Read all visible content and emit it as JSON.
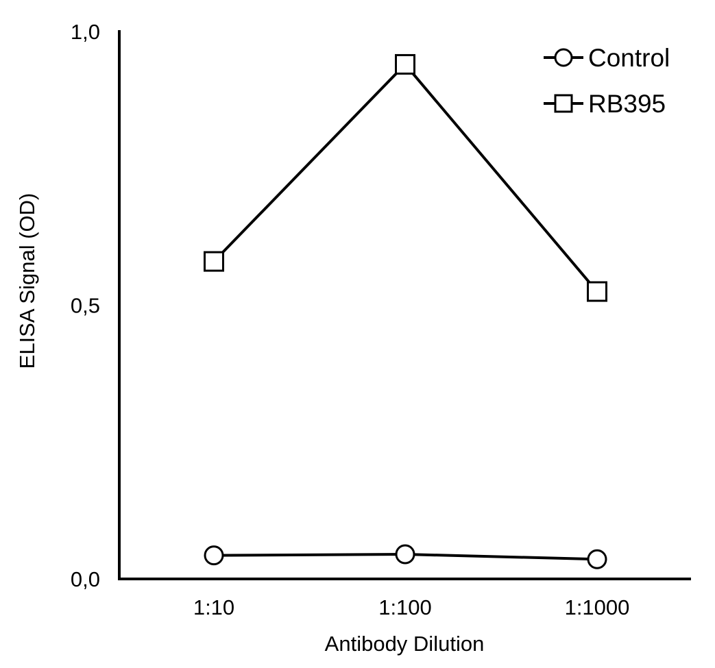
{
  "chart_data": {
    "type": "line",
    "title": "",
    "xlabel": "Antibody Dilution",
    "ylabel": "ELISA Signal (OD)",
    "categories": [
      "1:10",
      "1:100",
      "1:1000"
    ],
    "ylim": [
      0,
      1
    ],
    "yticks": [
      0,
      0.5,
      1
    ],
    "ytick_labels": [
      "0,0",
      "0,5",
      "1,0"
    ],
    "grid": false,
    "legend_position": "top-right",
    "series": [
      {
        "name": "Control",
        "marker": "circle",
        "color": "#000000",
        "values": [
          0.043,
          0.045,
          0.036
        ]
      },
      {
        "name": "RB395",
        "marker": "square",
        "color": "#000000",
        "values": [
          0.58,
          0.94,
          0.525
        ]
      }
    ]
  }
}
